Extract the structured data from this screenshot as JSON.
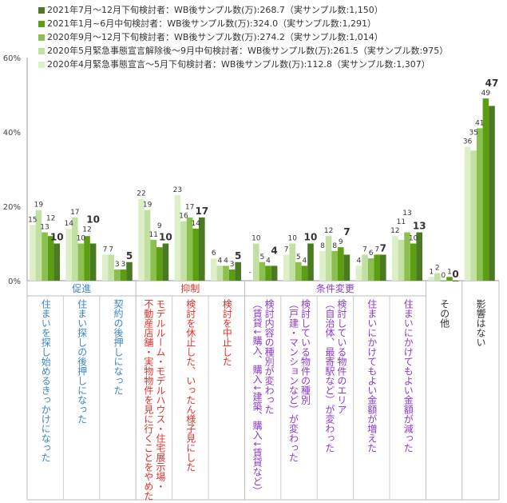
{
  "chart_data": {
    "type": "bar",
    "ylim": [
      0,
      60
    ],
    "yticks": [
      "0%",
      "20%",
      "40%",
      "60%"
    ],
    "series": [
      {
        "name": "2020年4月緊急事態宣言～5月下旬検討者：WB後サンプル数(万):112.8（実サンプル数:1,307）",
        "color": "#dcefc8",
        "values": [
          15,
          14,
          7,
          22,
          23,
          6,
          null,
          7,
          8,
          4,
          12,
          1,
          36
        ]
      },
      {
        "name": "2020年5月緊急事態宣言解除後～9月中旬検討者：WB後サンプル数(万):261.5（実サンプル数:975）",
        "color": "#c2e0a2",
        "values": [
          19,
          17,
          7,
          19,
          16,
          4,
          10,
          10,
          12,
          7,
          11,
          2,
          35
        ]
      },
      {
        "name": "2020年9月～12月下旬検討者：WB後サンプル数(万):274.2（実サンプル数:1,014）",
        "color": "#8cc04e",
        "values": [
          13,
          10,
          3,
          11,
          17,
          4,
          5,
          5,
          8,
          6,
          13,
          0,
          41
        ]
      },
      {
        "name": "2021年1月~6月中旬検討者：WB後サンプル数(万):324.0（実サンプル数:1,291）",
        "color": "#5c9e12",
        "values": [
          12,
          12,
          3,
          9,
          14,
          3,
          4,
          4,
          9,
          7,
          10,
          1,
          49
        ]
      },
      {
        "name": "2021年7月～12月下旬検討者：WB後サンプル数(万):268.7（実サンプル数:1,150）",
        "color": "#4a7a22",
        "values": [
          10,
          10,
          5,
          10,
          17,
          5,
          4,
          10,
          7,
          7,
          13,
          0,
          47
        ]
      }
    ],
    "missing_label": "-",
    "groups": [
      {
        "label": "促進",
        "span": 3,
        "color": "#3a86c4"
      },
      {
        "label": "抑制",
        "span": 3,
        "color": "#e0302a"
      },
      {
        "label": "条件変更",
        "span": 5,
        "color": "#8a3ad0"
      },
      {
        "label": "",
        "span": 1,
        "color": "#444444"
      },
      {
        "label": "",
        "span": 1,
        "color": "#444444"
      }
    ],
    "categories": [
      {
        "label": "住まいを探し始めるきっかけになった",
        "color": "#3a86c4"
      },
      {
        "label": "住まい探しの後押しになった",
        "color": "#3a86c4"
      },
      {
        "label": "契約の後押しになった",
        "color": "#3a86c4"
      },
      {
        "label": "モデルルーム・モデルハウス・住宅展示場・\n不動産店舗・実物物件を見に行くことをやめた",
        "color": "#e0302a"
      },
      {
        "label": "検討を休止した、いったん様子見にした",
        "color": "#e0302a"
      },
      {
        "label": "検討を中止した",
        "color": "#e0302a"
      },
      {
        "label": "検討内容の種別が変わった\n（賃貸↓購入、購入↓建築、購入↓賃貸など）",
        "color": "#8a3ad0"
      },
      {
        "label": "検討している物件の種別\n（戸建・マンションなど）が変わった",
        "color": "#8a3ad0"
      },
      {
        "label": "検討している物件のエリア\n（自治体、最寄駅など）が変わった",
        "color": "#8a3ad0"
      },
      {
        "label": "住まいにかけてもよい金額が増えた",
        "color": "#8a3ad0"
      },
      {
        "label": "住まいにかけてもよい金額が減った",
        "color": "#8a3ad0"
      },
      {
        "label": "その他",
        "color": "#333333"
      },
      {
        "label": "影響はない",
        "color": "#333333"
      }
    ]
  }
}
